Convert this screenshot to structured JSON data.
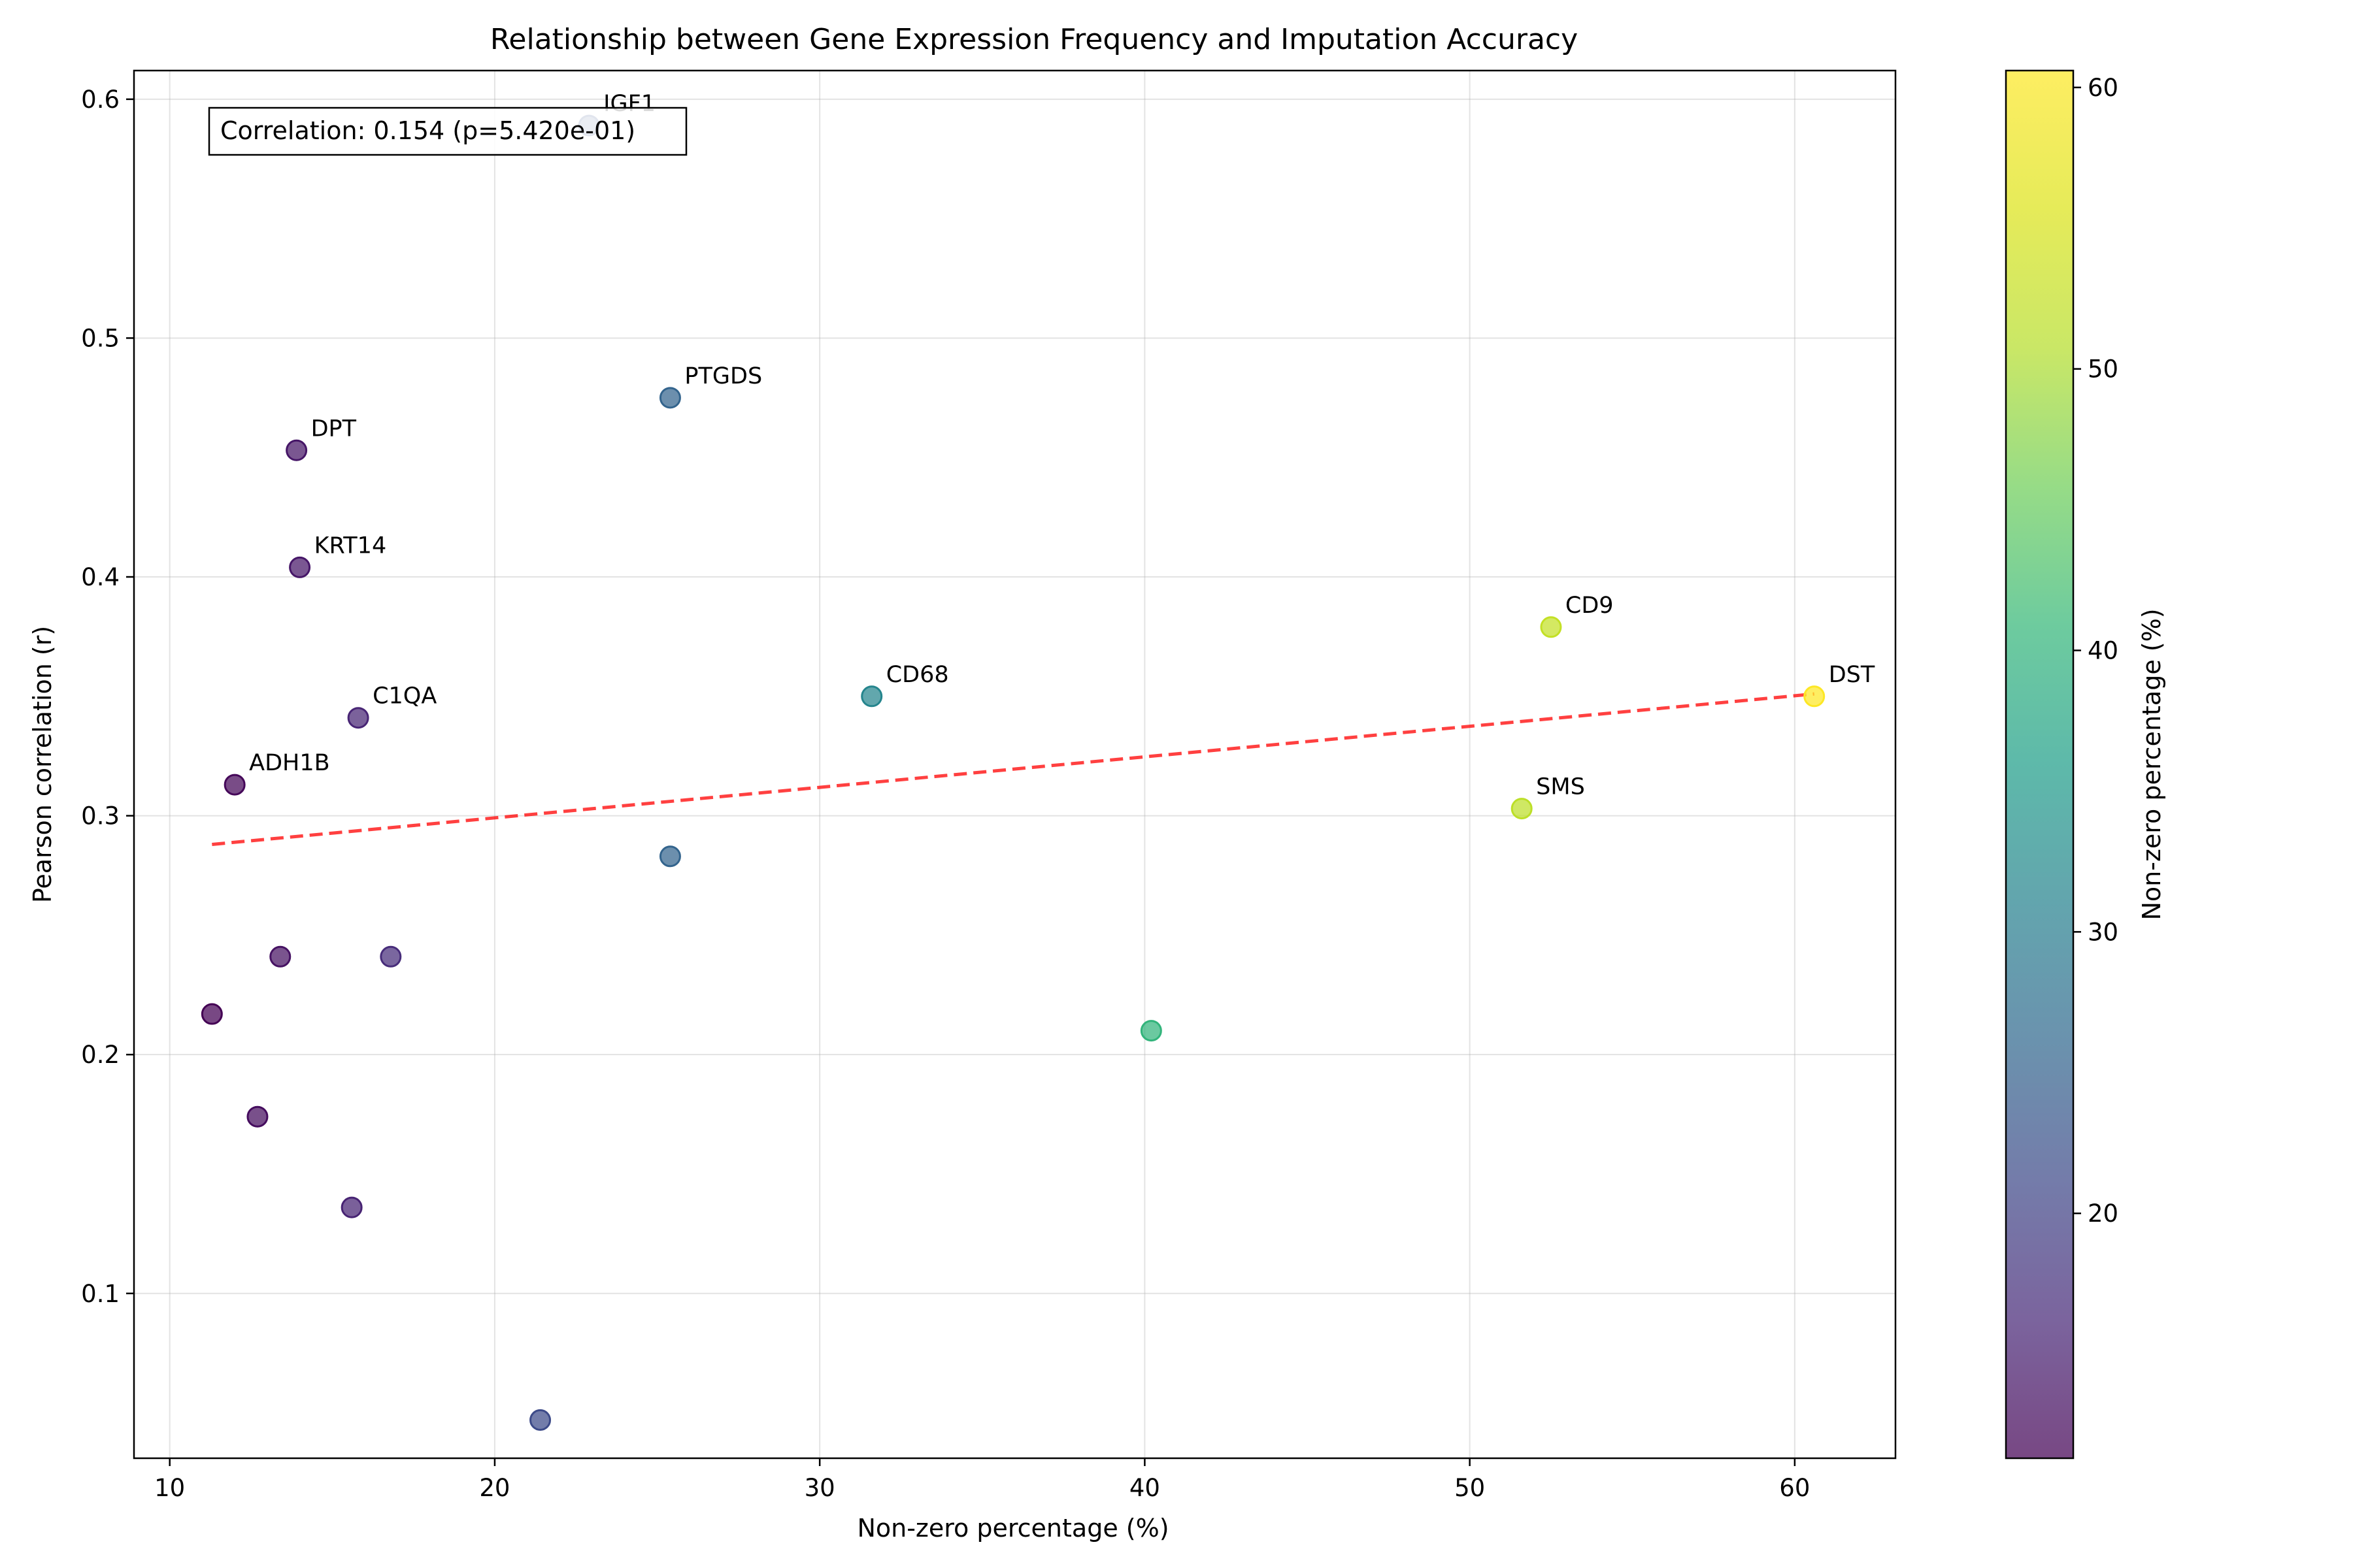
{
  "chart_data": {
    "type": "scatter",
    "title": "Relationship between Gene Expression Frequency and Imputation Accuracy",
    "xlabel": "Non-zero percentage (%)",
    "ylabel": "Pearson correlation (r)",
    "xlim": [
      8.9,
      63.1
    ],
    "ylim": [
      0.031,
      0.612
    ],
    "xticks": [
      10,
      20,
      30,
      40,
      50,
      60
    ],
    "yticks": [
      0.1,
      0.2,
      0.3,
      0.4,
      0.5,
      0.6
    ],
    "grid": true,
    "points": [
      {
        "x": 22.9,
        "y": 0.589,
        "c": 22.9,
        "label": "IGF1"
      },
      {
        "x": 25.4,
        "y": 0.475,
        "c": 25.4,
        "label": "PTGDS"
      },
      {
        "x": 13.9,
        "y": 0.453,
        "c": 13.9,
        "label": "DPT"
      },
      {
        "x": 14.0,
        "y": 0.404,
        "c": 14.0,
        "label": "KRT14"
      },
      {
        "x": 52.5,
        "y": 0.379,
        "c": 52.5,
        "label": "CD9"
      },
      {
        "x": 31.6,
        "y": 0.35,
        "c": 31.6,
        "label": "CD68"
      },
      {
        "x": 60.6,
        "y": 0.35,
        "c": 60.6,
        "label": "DST"
      },
      {
        "x": 15.8,
        "y": 0.341,
        "c": 15.8,
        "label": "C1QA"
      },
      {
        "x": 12.0,
        "y": 0.313,
        "c": 12.0,
        "label": "ADH1B"
      },
      {
        "x": 51.6,
        "y": 0.303,
        "c": 51.6,
        "label": "SMS"
      },
      {
        "x": 25.4,
        "y": 0.283,
        "c": 25.4,
        "label": ""
      },
      {
        "x": 13.4,
        "y": 0.241,
        "c": 13.4,
        "label": ""
      },
      {
        "x": 16.8,
        "y": 0.241,
        "c": 16.8,
        "label": ""
      },
      {
        "x": 11.3,
        "y": 0.217,
        "c": 11.3,
        "label": ""
      },
      {
        "x": 40.2,
        "y": 0.21,
        "c": 40.2,
        "label": ""
      },
      {
        "x": 12.7,
        "y": 0.174,
        "c": 12.7,
        "label": ""
      },
      {
        "x": 15.6,
        "y": 0.136,
        "c": 15.6,
        "label": ""
      },
      {
        "x": 21.4,
        "y": 0.047,
        "c": 21.4,
        "label": ""
      }
    ],
    "trendline": {
      "x": [
        11.3,
        60.6
      ],
      "y": [
        0.288,
        0.351
      ],
      "color": "#ff0000",
      "style": "dashed"
    },
    "annotation": "Correlation: 0.154 (p=5.420e-01)",
    "colorbar": {
      "label": "Non-zero percentage (%)",
      "colormap": "viridis",
      "range": [
        11.3,
        60.6
      ],
      "ticks": [
        20,
        30,
        40,
        50,
        60
      ]
    }
  }
}
